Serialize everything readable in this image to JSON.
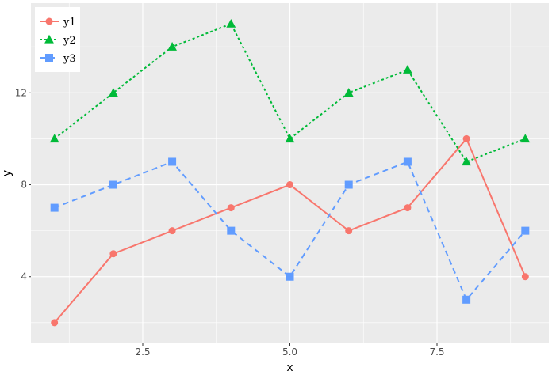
{
  "chart_data": {
    "type": "line",
    "xlabel": "x",
    "ylabel": "y",
    "xlim": [
      0.6,
      9.4
    ],
    "ylim": [
      1.1,
      15.9
    ],
    "x_ticks": [
      2.5,
      5.0,
      7.5
    ],
    "x_tick_labels": [
      "2.5",
      "5.0",
      "7.5"
    ],
    "y_ticks": [
      4,
      8,
      12
    ],
    "y_tick_labels": [
      "4",
      "8",
      "12"
    ],
    "grid": true,
    "legend_position": "top-left",
    "x": [
      1,
      2,
      3,
      4,
      5,
      6,
      7,
      8,
      9
    ],
    "series": [
      {
        "name": "y1",
        "values": [
          2,
          5,
          6,
          7,
          8,
          6,
          7,
          10,
          4
        ],
        "color": "#F8766D",
        "marker": "circle",
        "line_style": "solid"
      },
      {
        "name": "y2",
        "values": [
          10,
          12,
          14,
          15,
          10,
          12,
          13,
          9,
          10
        ],
        "color": "#00BA38",
        "marker": "triangle",
        "line_style": "dotted"
      },
      {
        "name": "y3",
        "values": [
          7,
          8,
          9,
          6,
          4,
          8,
          9,
          3,
          6
        ],
        "color": "#619CFF",
        "marker": "square",
        "line_style": "dashed"
      }
    ],
    "panel_background": "#EBEBEB",
    "grid_color": "#FFFFFF"
  }
}
